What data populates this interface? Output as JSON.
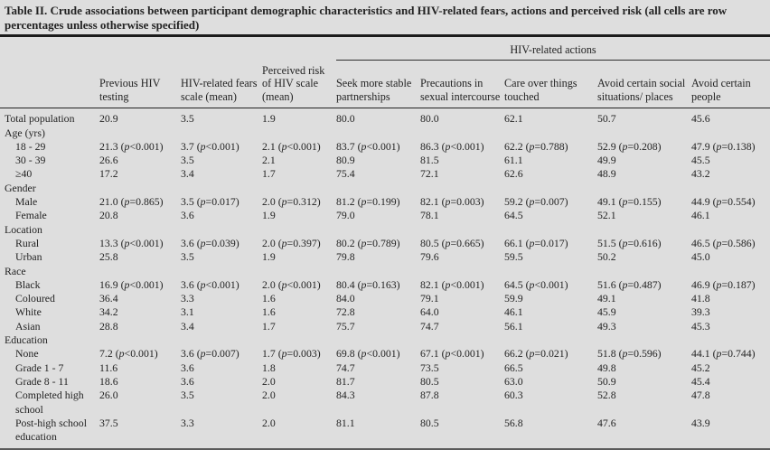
{
  "title": "Table II. Crude associations between participant demographic characteristics and HIV-related fears, actions and perceived risk (all cells are row percentages unless otherwise specified)",
  "table": {
    "span_header": "HIV-related actions",
    "p_open": "(",
    "p_sym": "p",
    "p_close": ")",
    "columns": [
      {
        "label": "Previous HIV testing"
      },
      {
        "label": "HIV-related fears scale (mean)"
      },
      {
        "label": "Perceived risk of HIV scale (mean)"
      },
      {
        "label": "Seek more stable partnerships"
      },
      {
        "label": "Precautions in sexual intercourse"
      },
      {
        "label": "Care over things touched"
      },
      {
        "label": "Avoid certain social situations/ places"
      },
      {
        "label": "Avoid certain people"
      }
    ],
    "rows": [
      {
        "label": "Total population",
        "type": "data",
        "indent": false,
        "cells": [
          "20.9",
          "3.5",
          "1.9",
          "80.0",
          "80.0",
          "62.1",
          "50.7",
          "45.6"
        ]
      },
      {
        "label": "Age (yrs)",
        "type": "category",
        "indent": false,
        "cells": []
      },
      {
        "label": "18 - 29",
        "type": "data",
        "indent": true,
        "cells": [
          {
            "v": "21.3",
            "p": "<0.001"
          },
          {
            "v": "3.7",
            "p": "<0.001"
          },
          {
            "v": "2.1",
            "p": "<0.001"
          },
          {
            "v": "83.7",
            "p": "<0.001"
          },
          {
            "v": "86.3",
            "p": "<0.001"
          },
          {
            "v": "62.2",
            "p": "=0.788"
          },
          {
            "v": "52.9",
            "p": "=0.208"
          },
          {
            "v": "47.9",
            "p": "=0.138"
          }
        ]
      },
      {
        "label": "30 - 39",
        "type": "data",
        "indent": true,
        "cells": [
          "26.6",
          "3.5",
          "2.1",
          "80.9",
          "81.5",
          "61.1",
          "49.9",
          "45.5"
        ]
      },
      {
        "label": "≥40",
        "type": "data",
        "indent": true,
        "cells": [
          "17.2",
          "3.4",
          "1.7",
          "75.4",
          "72.1",
          "62.6",
          "48.9",
          "43.2"
        ]
      },
      {
        "label": "Gender",
        "type": "category",
        "indent": false,
        "cells": []
      },
      {
        "label": "Male",
        "type": "data",
        "indent": true,
        "cells": [
          {
            "v": "21.0",
            "p": "=0.865"
          },
          {
            "v": "3.5",
            "p": "=0.017"
          },
          {
            "v": "2.0",
            "p": "=0.312"
          },
          {
            "v": "81.2",
            "p": "=0.199"
          },
          {
            "v": "82.1",
            "p": "=0.003"
          },
          {
            "v": "59.2",
            "p": "=0.007"
          },
          {
            "v": "49.1",
            "p": "=0.155"
          },
          {
            "v": "44.9",
            "p": "=0.554"
          }
        ]
      },
      {
        "label": "Female",
        "type": "data",
        "indent": true,
        "cells": [
          "20.8",
          "3.6",
          "1.9",
          "79.0",
          "78.1",
          "64.5",
          "52.1",
          "46.1"
        ]
      },
      {
        "label": "Location",
        "type": "category",
        "indent": false,
        "cells": []
      },
      {
        "label": "Rural",
        "type": "data",
        "indent": true,
        "cells": [
          {
            "v": "13.3",
            "p": "<0.001"
          },
          {
            "v": "3.6",
            "p": "=0.039"
          },
          {
            "v": "2.0",
            "p": "=0.397"
          },
          {
            "v": "80.2",
            "p": "=0.789"
          },
          {
            "v": "80.5",
            "p": "=0.665"
          },
          {
            "v": "66.1",
            "p": "=0.017"
          },
          {
            "v": "51.5",
            "p": "=0.616"
          },
          {
            "v": "46.5",
            "p": "=0.586"
          }
        ]
      },
      {
        "label": "Urban",
        "type": "data",
        "indent": true,
        "cells": [
          "25.8",
          "3.5",
          "1.9",
          "79.8",
          "79.6",
          "59.5",
          "50.2",
          "45.0"
        ]
      },
      {
        "label": "Race",
        "type": "category",
        "indent": false,
        "cells": []
      },
      {
        "label": "Black",
        "type": "data",
        "indent": true,
        "cells": [
          {
            "v": "16.9",
            "p": "<0.001"
          },
          {
            "v": "3.6",
            "p": "<0.001"
          },
          {
            "v": "2.0",
            "p": "<0.001"
          },
          {
            "v": "80.4",
            "p": "=0.163"
          },
          {
            "v": "82.1",
            "p": "<0.001"
          },
          {
            "v": "64.5",
            "p": "<0.001"
          },
          {
            "v": "51.6",
            "p": "=0.487"
          },
          {
            "v": "46.9",
            "p": "=0.187"
          }
        ]
      },
      {
        "label": "Coloured",
        "type": "data",
        "indent": true,
        "cells": [
          "36.4",
          "3.3",
          "1.6",
          "84.0",
          "79.1",
          "59.9",
          "49.1",
          "41.8"
        ]
      },
      {
        "label": "White",
        "type": "data",
        "indent": true,
        "cells": [
          "34.2",
          "3.1",
          "1.6",
          "72.8",
          "64.0",
          "46.1",
          "45.9",
          "39.3"
        ]
      },
      {
        "label": "Asian",
        "type": "data",
        "indent": true,
        "cells": [
          "28.8",
          "3.4",
          "1.7",
          "75.7",
          "74.7",
          "56.1",
          "49.3",
          "45.3"
        ]
      },
      {
        "label": "Education",
        "type": "category",
        "indent": false,
        "cells": []
      },
      {
        "label": "None",
        "type": "data",
        "indent": true,
        "cells": [
          {
            "v": "7.2",
            "p": "<0.001"
          },
          {
            "v": "3.6",
            "p": "=0.007"
          },
          {
            "v": "1.7",
            "p": "=0.003"
          },
          {
            "v": "69.8",
            "p": "<0.001"
          },
          {
            "v": "67.1",
            "p": "<0.001"
          },
          {
            "v": "66.2",
            "p": "=0.021"
          },
          {
            "v": "51.8",
            "p": "=0.596"
          },
          {
            "v": "44.1",
            "p": "=0.744"
          }
        ]
      },
      {
        "label": "Grade 1 - 7",
        "type": "data",
        "indent": true,
        "cells": [
          "11.6",
          "3.6",
          "1.8",
          "74.7",
          "73.5",
          "66.5",
          "49.8",
          "45.2"
        ]
      },
      {
        "label": "Grade 8 - 11",
        "type": "data",
        "indent": true,
        "cells": [
          "18.6",
          "3.6",
          "2.0",
          "81.7",
          "80.5",
          "63.0",
          "50.9",
          "45.4"
        ]
      },
      {
        "label": "Completed high school",
        "type": "data",
        "indent": true,
        "cells": [
          "26.0",
          "3.5",
          "2.0",
          "84.3",
          "87.8",
          "60.3",
          "52.8",
          "47.8"
        ]
      },
      {
        "label": "Post-high school education",
        "type": "data",
        "indent": true,
        "cells": [
          "37.5",
          "3.3",
          "2.0",
          "81.1",
          "80.5",
          "56.8",
          "47.6",
          "43.9"
        ]
      }
    ]
  }
}
